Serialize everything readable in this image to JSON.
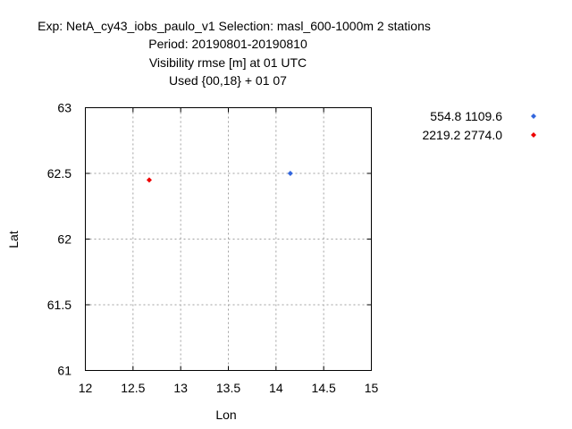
{
  "header": {
    "line1": "Exp: NetA_cy43_iobs_paulo_v1   Selection: masl_600-1000m      2 stations",
    "line2": "Period: 20190801-20190810",
    "line3": "Visibility rmse [m] at  01 UTC",
    "line4": "Used {00,18} + 01 07"
  },
  "chart_data": {
    "type": "scatter",
    "title": "Visibility rmse [m] at  01 UTC",
    "xlabel": "Lon",
    "ylabel": "Lat",
    "xlim": [
      12,
      15
    ],
    "ylim": [
      61,
      63
    ],
    "xticks": [
      "12",
      "12.5",
      "13",
      "13.5",
      "14",
      "14.5",
      "15"
    ],
    "yticks": [
      "61",
      "61.5",
      "62",
      "62.5",
      "63"
    ],
    "grid": true,
    "legend_position": "right",
    "series": [
      {
        "name": "554.8 1109.6",
        "color": "#3366dd",
        "points": [
          {
            "x": 14.15,
            "y": 62.5
          }
        ]
      },
      {
        "name": "2219.2 2774.0",
        "color": "#ee0000",
        "points": [
          {
            "x": 12.67,
            "y": 62.45
          }
        ]
      }
    ]
  }
}
